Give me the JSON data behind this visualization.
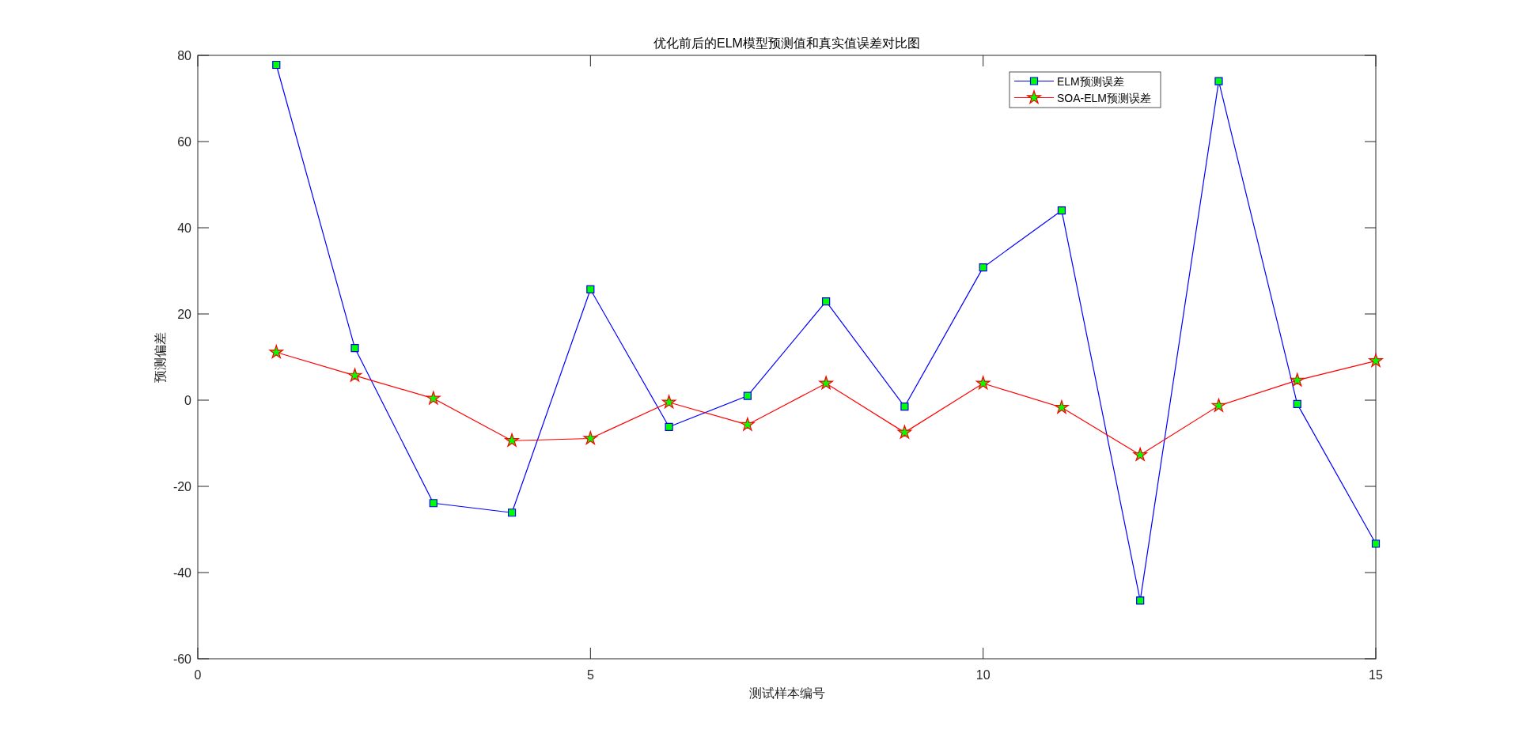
{
  "chart_data": {
    "type": "line",
    "title": "优化前后的ELM模型预测值和真实值误差对比图",
    "xlabel": "测试样本编号",
    "ylabel": "预测偏差",
    "x": [
      1,
      2,
      3,
      4,
      5,
      6,
      7,
      8,
      9,
      10,
      11,
      12,
      13,
      14,
      15
    ],
    "series": [
      {
        "name": "ELM预测误差",
        "color": "#0000ff",
        "marker": "square",
        "values": [
          77.8,
          12.1,
          -23.9,
          -26.1,
          25.7,
          -6.2,
          1.0,
          22.9,
          -1.5,
          30.8,
          44.0,
          -46.5,
          74.0,
          -0.9,
          -33.3
        ]
      },
      {
        "name": "SOA-ELM预测误差",
        "color": "#ff0000",
        "marker": "star",
        "values": [
          11.1,
          5.7,
          0.4,
          -9.4,
          -8.9,
          -0.5,
          -5.7,
          3.9,
          -7.5,
          3.9,
          -1.7,
          -12.7,
          -1.3,
          4.6,
          9.1
        ]
      }
    ],
    "xlim": [
      0,
      15
    ],
    "xticks": [
      0,
      5,
      10,
      15
    ],
    "ylim": [
      -60,
      80
    ],
    "yticks": [
      -60,
      -40,
      -20,
      0,
      20,
      40,
      60,
      80
    ],
    "legend": "top right",
    "line_style": "solid"
  }
}
